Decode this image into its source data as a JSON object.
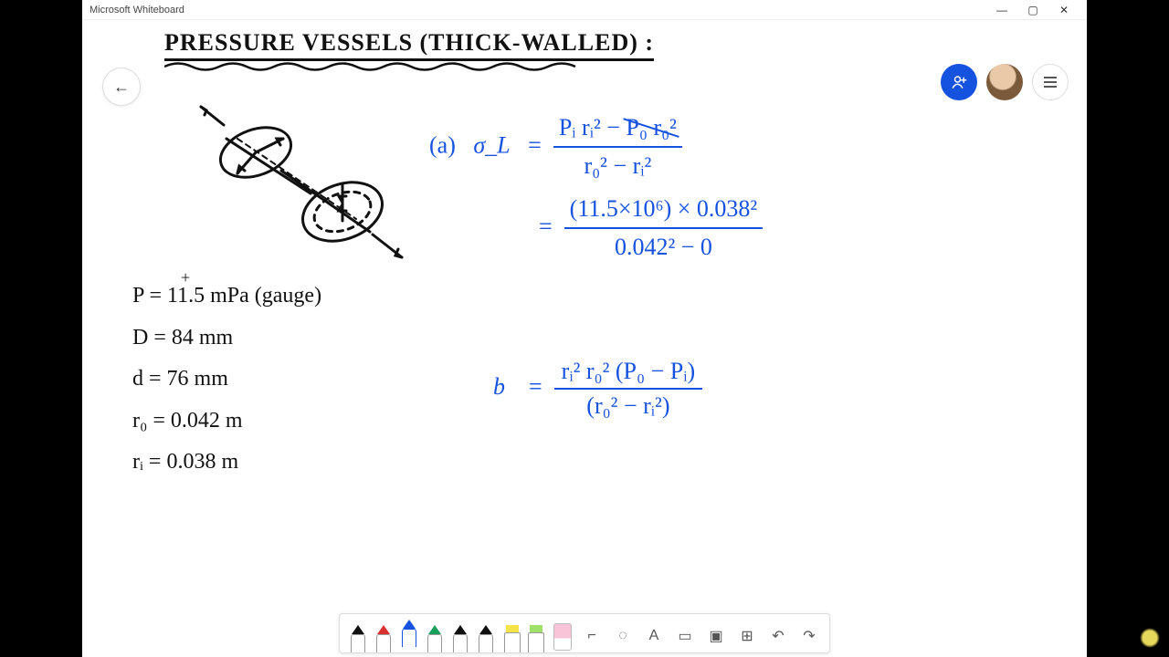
{
  "window": {
    "title": "Microsoft Whiteboard",
    "min_icon": "—",
    "max_icon": "▢",
    "close_icon": "✕"
  },
  "top": {
    "back_glyph": "←",
    "share_glyph": "⚲",
    "menu_glyph": "≡"
  },
  "ink": {
    "title": "PRESSURE VESSELS (THICK-WALLED) :",
    "black_color": "#111111",
    "blue_color": "#1552e0",
    "givens": {
      "plus": "+",
      "p": "P  =  11.5 mPa (gauge)",
      "D": "D  =  84 mm",
      "d": "d  =  76 mm",
      "r0": "r₀  =  0.042 m",
      "ri": "rᵢ  =  0.038 m"
    },
    "eq_a": {
      "label": "(a)",
      "lhs": "σ_L",
      "eq": "=",
      "num1_a": "Pᵢ rᵢ²",
      "num1_minus": "−",
      "num1_b": "P₀ r₀²",
      "den1": "r₀² − rᵢ²",
      "num2": "(11.5×10⁶) × 0.038²",
      "den2": "0.042² − 0"
    },
    "eq_b": {
      "lhs": "b",
      "eq": "=",
      "num": "rᵢ² r₀² (P₀ − Pᵢ)",
      "den": "(r₀² − rᵢ²)"
    }
  },
  "toolbar": {
    "pens": [
      {
        "color": "#111111",
        "selected": false
      },
      {
        "color": "#d93030",
        "selected": false
      },
      {
        "color": "#1552e0",
        "selected": true
      },
      {
        "color": "#18a05a",
        "selected": false
      },
      {
        "color": "#111111",
        "selected": false
      },
      {
        "color": "#111111",
        "selected": false
      }
    ],
    "highlighters": [
      {
        "color": "#f6e34a"
      },
      {
        "color": "#9fe06a"
      }
    ],
    "icons": {
      "ruler": "⌐",
      "lasso": "◌",
      "text": "A",
      "note": "▭",
      "image": "▣",
      "add": "⊞",
      "undo": "↶",
      "redo": "↷"
    }
  }
}
